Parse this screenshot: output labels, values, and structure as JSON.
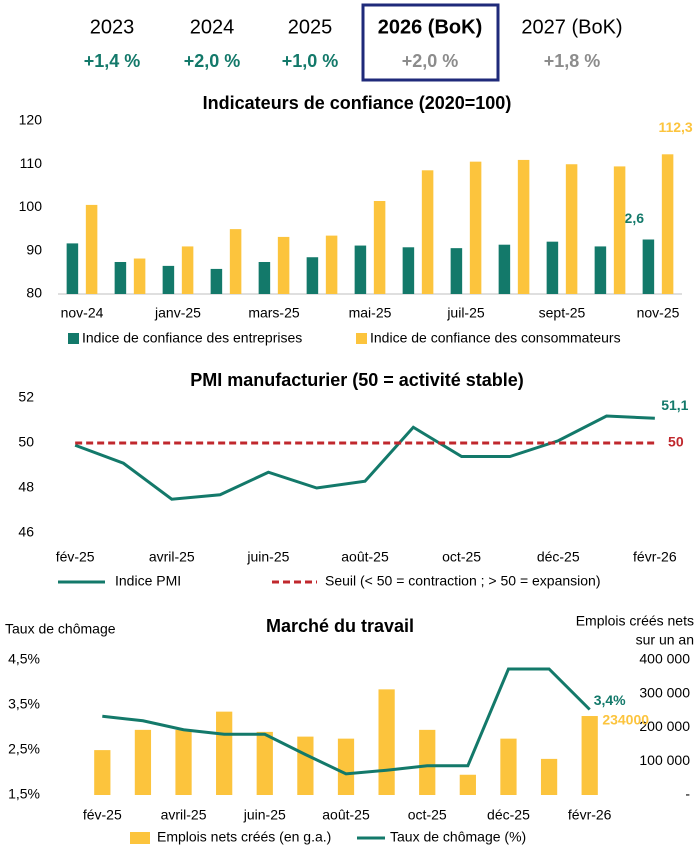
{
  "header": {
    "years": [
      "2023",
      "2024",
      "2025",
      "2026 (BoK)",
      "2027 (BoK)"
    ],
    "growth": [
      "+1,4 %",
      "+2,0 %",
      "+1,0 %",
      "+2,0 %",
      "+1,8 %"
    ]
  },
  "chart_data": [
    {
      "type": "bar",
      "title": "Indicateurs de confiance (2020=100)",
      "categories": [
        "nov-24",
        null,
        "janv-25",
        null,
        "mars-25",
        null,
        "mai-25",
        null,
        "juil-25",
        null,
        "sept-25",
        null,
        "nov-25"
      ],
      "series": [
        {
          "name": "Indice de confiance des entreprises",
          "color": "#13796a",
          "type": "bar",
          "values": [
            91.7,
            87.4,
            86.5,
            85.8,
            87.4,
            88.5,
            91.2,
            90.8,
            90.6,
            91.4,
            92.1,
            91.0,
            92.6
          ],
          "value_labels": [
            null,
            null,
            null,
            null,
            null,
            null,
            null,
            null,
            null,
            null,
            null,
            null,
            "92,6"
          ]
        },
        {
          "name": "Indice de confiance des consommateurs",
          "color": "#fcc43d",
          "type": "bar",
          "values": [
            100.6,
            88.2,
            91.0,
            95.0,
            93.2,
            93.5,
            101.5,
            108.6,
            110.6,
            111.0,
            110.0,
            109.5,
            112.3
          ],
          "value_labels": [
            null,
            null,
            null,
            null,
            null,
            null,
            null,
            null,
            null,
            null,
            null,
            null,
            "112,3"
          ]
        }
      ],
      "ylim": [
        80,
        120
      ],
      "yticks": [
        80,
        90,
        100,
        110,
        120
      ]
    },
    {
      "type": "line",
      "title": "PMI manufacturier (50 = activité stable)",
      "categories": [
        "fév-25",
        null,
        "avril-25",
        null,
        "juin-25",
        null,
        "août-25",
        null,
        "oct-25",
        null,
        "déc-25",
        null,
        "févr-26"
      ],
      "series": [
        {
          "name": "Indice PMI",
          "color": "#13796a",
          "type": "line",
          "values": [
            49.9,
            49.1,
            47.5,
            47.7,
            48.7,
            48.0,
            48.3,
            50.7,
            49.4,
            49.4,
            50.1,
            51.2,
            51.1
          ],
          "value_labels": [
            null,
            null,
            null,
            null,
            null,
            null,
            null,
            null,
            null,
            null,
            null,
            null,
            "51,1"
          ]
        },
        {
          "name": "Seuil (< 50 = contraction ; > 50 = expansion)",
          "color": "#c0282d",
          "type": "line",
          "style": "dashed",
          "values": [
            50,
            50,
            50,
            50,
            50,
            50,
            50,
            50,
            50,
            50,
            50,
            50,
            50
          ],
          "value_labels": [
            null,
            null,
            null,
            null,
            null,
            null,
            null,
            null,
            null,
            null,
            null,
            null,
            "50"
          ]
        }
      ],
      "ylim": [
        46,
        52
      ],
      "yticks": [
        46,
        48,
        50,
        52
      ]
    },
    {
      "type": "combo",
      "title": "Marché du travail",
      "ylabel": "Taux de chômage",
      "y2label": [
        "Emplois créés nets",
        "sur un an"
      ],
      "categories": [
        "fév-25",
        null,
        "avril-25",
        null,
        "juin-25",
        null,
        "août-25",
        null,
        "oct-25",
        null,
        "déc-25",
        null,
        "févr-26"
      ],
      "series": [
        {
          "name": "Emplois nets créés (en g.a.)",
          "color": "#fcc43d",
          "type": "bar",
          "axis": "y2",
          "values": [
            133000,
            193000,
            193000,
            247000,
            187000,
            173000,
            167000,
            313000,
            193000,
            60000,
            167000,
            107000,
            234000
          ]
        },
        {
          "name": "Taux de chômage (%)",
          "color": "#13796a",
          "type": "line",
          "values": [
            3.25,
            3.15,
            2.95,
            2.85,
            2.85,
            2.4,
            1.97,
            2.05,
            2.15,
            2.15,
            4.3,
            4.3,
            3.4
          ],
          "value_labels": [
            null,
            null,
            null,
            null,
            null,
            null,
            null,
            null,
            null,
            null,
            null,
            null,
            "3,4%"
          ]
        }
      ],
      "ylim": [
        1.5,
        4.5
      ],
      "yticks": [
        {
          "value": 1.5,
          "label": "1,5%"
        },
        {
          "value": 2.5,
          "label": "2,5%"
        },
        {
          "value": 3.5,
          "label": "3,5%"
        },
        {
          "value": 4.5,
          "label": "4,5%"
        }
      ],
      "y2lim": [
        0,
        400000
      ],
      "y2ticks": [
        {
          "value": 0,
          "label": "-"
        },
        {
          "value": 100000,
          "label": "100 000"
        },
        {
          "value": 200000,
          "label": "200 000"
        },
        {
          "value": 300000,
          "label": "300 000"
        },
        {
          "value": 400000,
          "label": "400 000"
        }
      ],
      "annotations": [
        {
          "text": "234000",
          "series": 0,
          "index": 12
        }
      ]
    }
  ]
}
